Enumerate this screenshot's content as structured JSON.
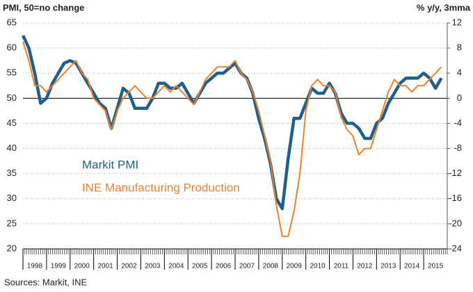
{
  "chart_data": {
    "type": "line",
    "left_axis_title": "PMI, 50=no change",
    "right_axis_title": "% y/y, 3mma",
    "source": "Sources: Markit, INE",
    "reference_line": 50,
    "grid": true,
    "xlim": [
      1998,
      2016
    ],
    "xticks": [
      1998,
      1999,
      2000,
      2001,
      2002,
      2003,
      2004,
      2005,
      2006,
      2007,
      2008,
      2009,
      2010,
      2011,
      2012,
      2013,
      2014,
      2015
    ],
    "ylim": [
      20,
      65
    ],
    "yticks": [
      20,
      25,
      30,
      35,
      40,
      45,
      50,
      55,
      60,
      65
    ],
    "y2lim": [
      -24,
      12
    ],
    "y2ticks": [
      -24,
      -20,
      -16,
      -12,
      -8,
      -4,
      0,
      4,
      8,
      12
    ],
    "x": [
      1998.0,
      1998.25,
      1998.5,
      1998.75,
      1999.0,
      1999.25,
      1999.5,
      1999.75,
      2000.0,
      2000.25,
      2000.5,
      2000.75,
      2001.0,
      2001.25,
      2001.5,
      2001.75,
      2002.0,
      2002.25,
      2002.5,
      2002.75,
      2003.0,
      2003.25,
      2003.5,
      2003.75,
      2004.0,
      2004.25,
      2004.5,
      2004.75,
      2005.0,
      2005.25,
      2005.5,
      2005.75,
      2006.0,
      2006.25,
      2006.5,
      2006.75,
      2007.0,
      2007.25,
      2007.5,
      2007.75,
      2008.0,
      2008.25,
      2008.5,
      2008.75,
      2009.0,
      2009.25,
      2009.5,
      2009.75,
      2010.0,
      2010.25,
      2010.5,
      2010.75,
      2011.0,
      2011.25,
      2011.5,
      2011.75,
      2012.0,
      2012.25,
      2012.5,
      2012.75,
      2013.0,
      2013.25,
      2013.5,
      2013.75,
      2014.0,
      2014.25,
      2014.5,
      2014.75,
      2015.0,
      2015.25,
      2015.5,
      2015.75
    ],
    "series": [
      {
        "name": "Markit PMI",
        "color": "#1f5f8b",
        "axis": "y",
        "values": [
          62.5,
          60,
          55,
          49,
          50,
          53,
          55,
          57,
          57.5,
          57,
          55,
          53,
          51,
          49,
          48,
          44,
          48,
          52,
          51,
          48,
          48,
          48,
          50,
          53,
          53,
          52,
          52,
          53,
          51,
          49,
          51,
          53,
          54,
          55,
          55,
          56,
          57,
          55,
          54,
          51,
          46,
          42,
          37,
          30,
          28,
          38,
          46,
          46,
          49,
          52,
          51,
          51,
          53,
          51,
          47,
          45,
          45,
          44,
          42,
          42,
          45,
          46,
          49,
          51,
          53,
          54,
          54,
          54,
          55,
          54,
          52,
          54
        ]
      },
      {
        "name": "INE Manufacturing Production",
        "color": "#f07f2a",
        "axis": "y2",
        "values": [
          9,
          6,
          2,
          2,
          1,
          2,
          3,
          4,
          5,
          6,
          4,
          3,
          0,
          -1,
          -2,
          -5,
          -2,
          0,
          1,
          2,
          1,
          0,
          0,
          1,
          2,
          1,
          2,
          1,
          0,
          -1,
          1,
          3,
          4,
          5,
          5,
          5,
          6,
          4,
          3,
          1,
          -2,
          -6,
          -10,
          -17,
          -22,
          -22,
          -18,
          -12,
          -2,
          2,
          3,
          2,
          2,
          1,
          -3,
          -5,
          -6,
          -9,
          -8,
          -8,
          -5,
          -2,
          1,
          3,
          2,
          2,
          1,
          2,
          2,
          3,
          4,
          5
        ]
      }
    ]
  }
}
